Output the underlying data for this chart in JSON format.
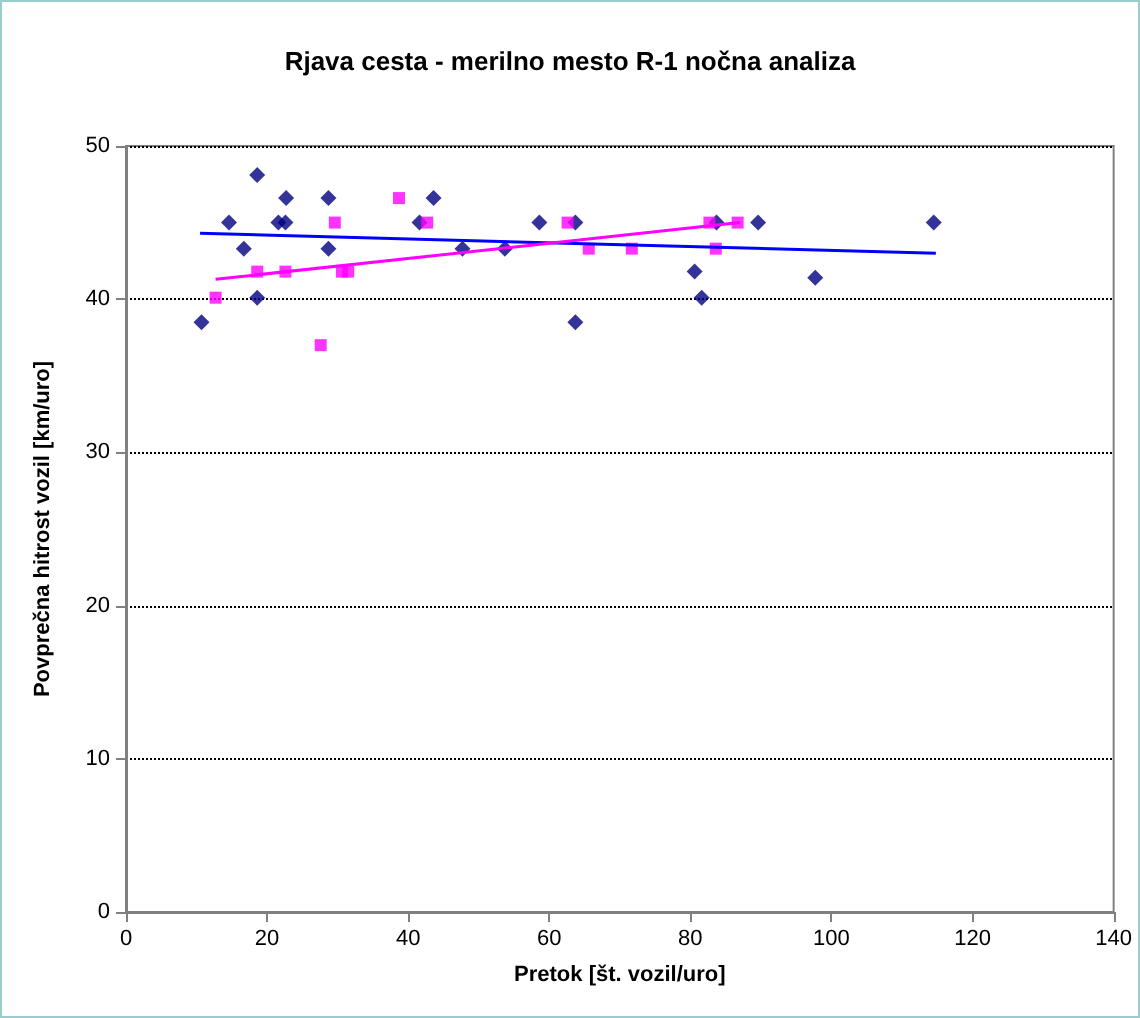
{
  "chart_data": {
    "type": "scatter",
    "title": "Rjava cesta - merilno mesto R-1 nočna analiza",
    "xlabel": "Pretok [št. vozil/uro]",
    "ylabel": "Povprečna hitrost vozil [km/uro]",
    "xlim": [
      0,
      140
    ],
    "xticks": [
      0,
      20,
      40,
      60,
      80,
      100,
      120,
      140
    ],
    "ylim": [
      0,
      50
    ],
    "yticks": [
      0,
      10,
      20,
      30,
      40,
      50
    ],
    "grid": "y",
    "series": [
      {
        "marker": "diamond",
        "color": "#000080",
        "x": [
          10.7,
          14.6,
          16.7,
          18.6,
          18.6,
          21.6,
          22.6,
          22.7,
          28.7,
          28.7,
          41.6,
          43.6,
          47.7,
          53.7,
          58.6,
          63.7,
          63.7,
          80.6,
          81.6,
          83.7,
          89.6,
          97.7,
          114.5
        ],
        "values": [
          38.5,
          45.0,
          43.3,
          48.1,
          40.1,
          45.0,
          45.0,
          46.6,
          46.6,
          43.3,
          45.0,
          46.6,
          43.3,
          43.3,
          45.0,
          45.0,
          38.5,
          41.8,
          40.1,
          45.0,
          45.0,
          41.4,
          45.0
        ]
      },
      {
        "marker": "square",
        "color": "#ff00ff",
        "x": [
          12.7,
          18.6,
          22.6,
          27.6,
          29.6,
          30.6,
          31.5,
          38.7,
          42.7,
          62.6,
          65.6,
          71.7,
          82.7,
          83.6,
          86.7
        ],
        "values": [
          40.1,
          41.8,
          41.8,
          37.0,
          45.0,
          41.8,
          41.8,
          46.6,
          45.0,
          45.0,
          43.3,
          43.3,
          45.0,
          43.3,
          45.0
        ]
      },
      {
        "type": "line",
        "marker": "none",
        "color": "#0000ff",
        "x": [
          10.5,
          114.8
        ],
        "values": [
          44.3,
          43.0
        ]
      },
      {
        "type": "line",
        "marker": "none",
        "color": "#ff00ff",
        "x": [
          12.7,
          87
        ],
        "values": [
          41.3,
          45.0
        ]
      }
    ]
  }
}
